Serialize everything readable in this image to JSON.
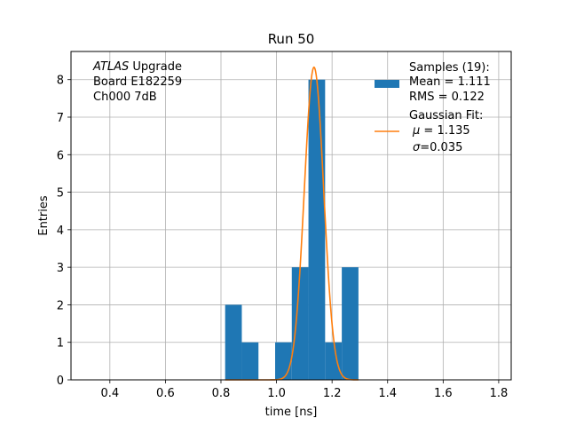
{
  "chart_data": {
    "type": "bar",
    "title": "Run 50",
    "xlabel": "time [ns]",
    "ylabel": "Entries",
    "xlim": [
      0.26,
      1.845
    ],
    "ylim": [
      0,
      8.75
    ],
    "xticks": [
      "0.4",
      "0.6",
      "0.8",
      "1.0",
      "1.2",
      "1.4",
      "1.6",
      "1.8"
    ],
    "yticks": [
      "0",
      "1",
      "2",
      "3",
      "4",
      "5",
      "6",
      "7",
      "8"
    ],
    "grid": true,
    "legend_position": "top-right",
    "histogram": {
      "name": "Samples (19):",
      "color": "#1f77b4",
      "bins": [
        {
          "x0": 0.815,
          "x1": 0.875,
          "count": 2
        },
        {
          "x0": 0.875,
          "x1": 0.935,
          "count": 1
        },
        {
          "x0": 0.995,
          "x1": 1.055,
          "count": 1
        },
        {
          "x0": 1.055,
          "x1": 1.115,
          "count": 3
        },
        {
          "x0": 1.115,
          "x1": 1.175,
          "count": 8
        },
        {
          "x0": 1.175,
          "x1": 1.235,
          "count": 1
        },
        {
          "x0": 1.235,
          "x1": 1.295,
          "count": 3
        }
      ]
    },
    "gaussian_fit": {
      "name": "Gaussian Fit:",
      "color": "#ff7f0e",
      "mu": 1.135,
      "sigma": 0.035,
      "amplitude": 8.33,
      "x_range": [
        0.815,
        1.295
      ]
    }
  },
  "legend": {
    "samples_title": "Samples (19):",
    "samples_mean": " Mean = 1.111",
    "samples_rms": " RMS = 0.122",
    "fit_title": "Gaussian Fit:",
    "fit_mu_symbol": "μ",
    "fit_mu_value": " = 1.135",
    "fit_sigma_symbol": "σ",
    "fit_sigma_value": "=0.035"
  },
  "annotation": {
    "experiment": "ATLAS",
    "experiment_suffix": " Upgrade",
    "board": " Board E182259",
    "channel": " Ch000 7dB"
  }
}
